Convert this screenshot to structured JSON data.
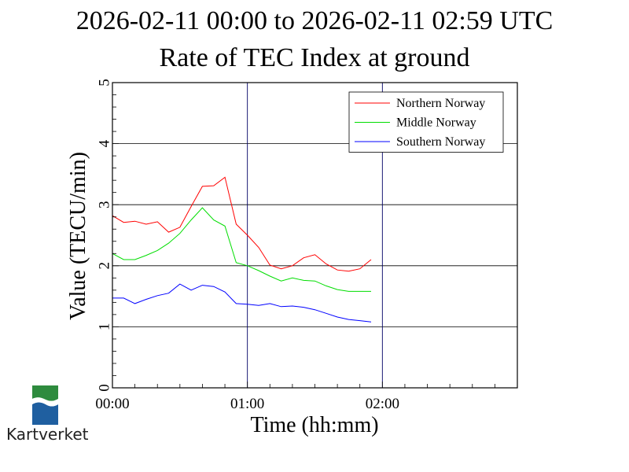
{
  "title_line1": "2026-02-11 00:00 to 2026-02-11 02:59 UTC",
  "title_line2": "Rate of TEC Index at ground",
  "logo": {
    "text": "Kartverket",
    "icon": "kartverket-logo-icon",
    "colors": {
      "green": "#2e8b3e",
      "blue": "#1f5fa0"
    }
  },
  "chart_data": {
    "type": "line",
    "title": "Rate of TEC Index at ground",
    "xlabel": "Time (hh:mm)",
    "ylabel": "Value (TECU/min)",
    "xlim": [
      0,
      180
    ],
    "ylim": [
      0,
      5
    ],
    "x_ticks": [
      {
        "value": 0,
        "label": "00:00"
      },
      {
        "value": 60,
        "label": "01:00"
      },
      {
        "value": 120,
        "label": "02:00"
      }
    ],
    "y_ticks": [
      {
        "value": 0,
        "label": "0"
      },
      {
        "value": 1,
        "label": "1"
      },
      {
        "value": 2,
        "label": "2"
      },
      {
        "value": 3,
        "label": "3"
      },
      {
        "value": 4,
        "label": "4"
      },
      {
        "value": 5,
        "label": "5"
      }
    ],
    "grid": true,
    "legend": "top-right",
    "x": [
      0,
      5,
      10,
      15,
      20,
      25,
      30,
      35,
      40,
      45,
      50,
      55,
      60,
      65,
      70,
      75,
      80,
      85,
      90,
      95,
      100,
      105,
      110,
      115
    ],
    "series": [
      {
        "name": "Northern Norway",
        "color": "#ff0000",
        "values": [
          2.82,
          2.71,
          2.73,
          2.68,
          2.72,
          2.55,
          2.63,
          2.97,
          3.3,
          3.31,
          3.45,
          2.68,
          2.5,
          2.3,
          2.01,
          1.95,
          2.0,
          2.13,
          2.18,
          2.03,
          1.93,
          1.91,
          1.95,
          2.1
        ]
      },
      {
        "name": "Middle Norway",
        "color": "#00dd00",
        "values": [
          2.2,
          2.1,
          2.1,
          2.17,
          2.25,
          2.37,
          2.53,
          2.75,
          2.95,
          2.75,
          2.65,
          2.05,
          2.0,
          1.92,
          1.83,
          1.75,
          1.8,
          1.76,
          1.75,
          1.67,
          1.61,
          1.58,
          1.58,
          1.58
        ]
      },
      {
        "name": "Southern Norway",
        "color": "#0000ff",
        "values": [
          1.47,
          1.47,
          1.38,
          1.45,
          1.51,
          1.55,
          1.7,
          1.6,
          1.68,
          1.66,
          1.57,
          1.38,
          1.37,
          1.35,
          1.38,
          1.33,
          1.34,
          1.32,
          1.28,
          1.22,
          1.16,
          1.12,
          1.1,
          1.08
        ]
      }
    ]
  }
}
